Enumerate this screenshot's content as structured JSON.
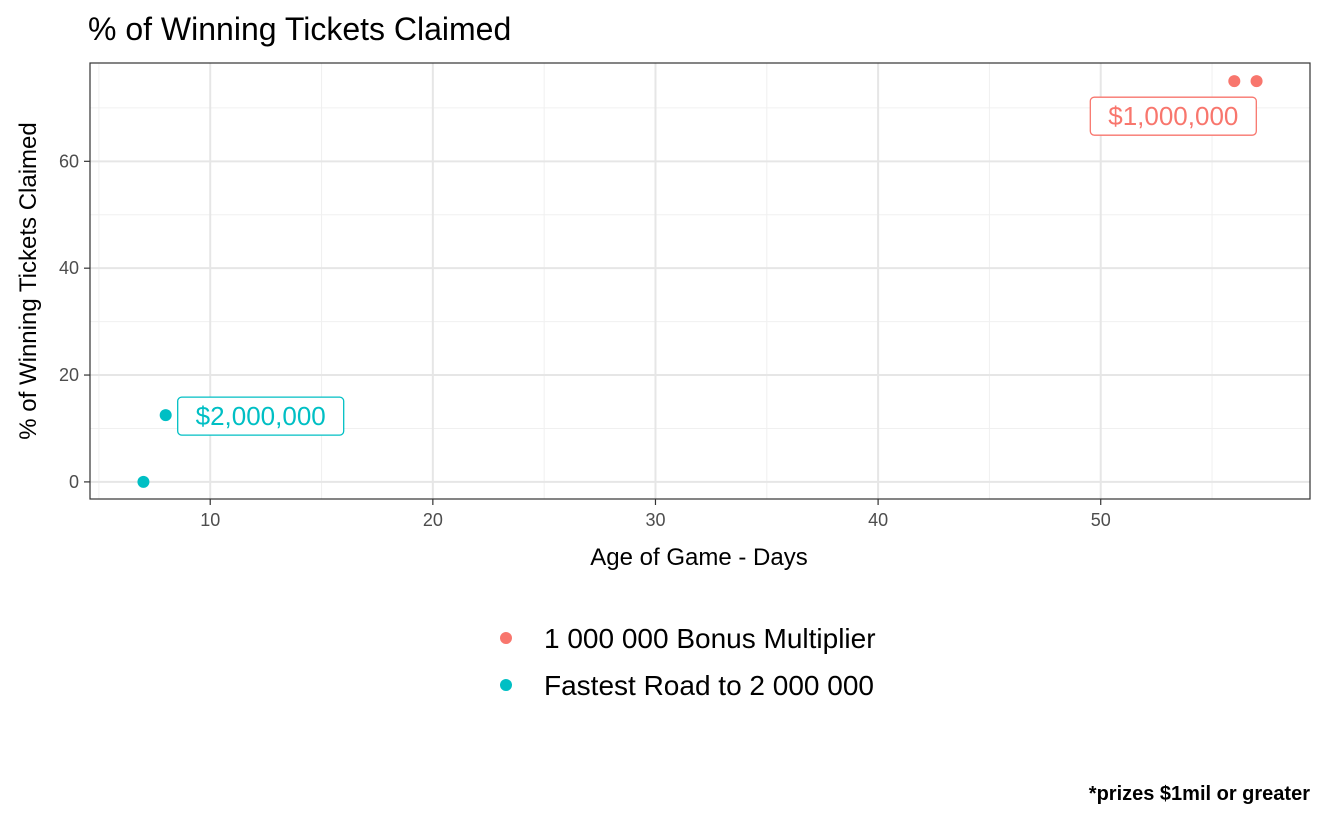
{
  "chart_data": {
    "type": "scatter",
    "title": "% of Winning Tickets Claimed",
    "xlabel": "Age of Game - Days",
    "ylabel": "% of Winning Tickets Claimed",
    "caption": "*prizes $1mil or greater",
    "xlim": [
      4.6,
      59.4
    ],
    "ylim": [
      -3.2,
      78.4
    ],
    "x_ticks": [
      10,
      20,
      30,
      40,
      50
    ],
    "y_ticks": [
      0,
      20,
      40,
      60
    ],
    "grid": true,
    "legend_position": "bottom",
    "series": [
      {
        "name": " 1 000 000 Bonus Multiplier",
        "color": "#F8766D",
        "points": [
          {
            "x": 56,
            "y": 75
          },
          {
            "x": 57,
            "y": 75
          }
        ],
        "label": {
          "text": "$1,000,000",
          "x": 56,
          "y": 75
        }
      },
      {
        "name": "Fastest Road to  2 000 000",
        "color": "#00BFC4",
        "points": [
          {
            "x": 7,
            "y": 0
          },
          {
            "x": 8,
            "y": 12.5
          }
        ],
        "label": {
          "text": "$2,000,000",
          "x": 8,
          "y": 12.5
        }
      }
    ]
  }
}
